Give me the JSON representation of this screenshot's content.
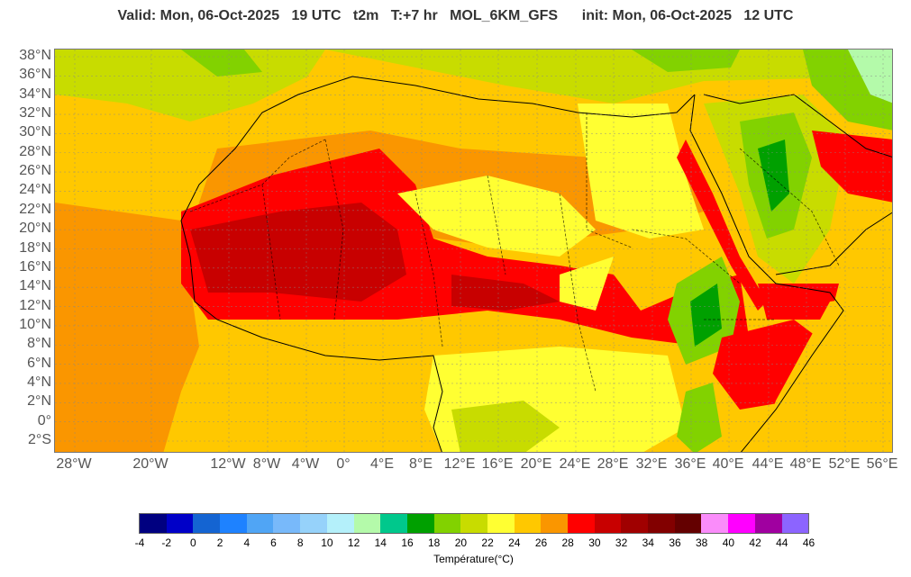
{
  "header": {
    "title": "Valid: Mon, 06-Oct-2025   19 UTC   t2m   T:+7 hr   MOL_6KM_GFS      init: Mon, 06-Oct-2025   12 UTC"
  },
  "map": {
    "lat_labels": [
      "38°N",
      "36°N",
      "34°N",
      "32°N",
      "30°N",
      "28°N",
      "26°N",
      "24°N",
      "22°N",
      "20°N",
      "18°N",
      "16°N",
      "14°N",
      "12°N",
      "10°N",
      "8°N",
      "6°N",
      "4°N",
      "2°N",
      "0°",
      "2°S"
    ],
    "lon_labels": [
      "28°W",
      "20°W",
      "12°W",
      "8°W",
      "4°W",
      "0°",
      "4°E",
      "8°E",
      "12°E",
      "16°E",
      "20°E",
      "24°E",
      "28°E",
      "32°E",
      "36°E",
      "40°E",
      "44°E",
      "48°E",
      "52°E",
      "56°E"
    ],
    "grid": true,
    "colors": {
      "ocean_west": "#fe9b00",
      "sahel_hot": "#e40000",
      "core_hot": "#b20000",
      "warm": "#ffc000",
      "mild": "#ffff33",
      "green": "#88cc00",
      "cool": "#22aa22"
    }
  },
  "colorbar": {
    "title": "Température(°C)",
    "ticks": [
      "-4",
      "-2",
      "0",
      "2",
      "4",
      "6",
      "8",
      "10",
      "12",
      "14",
      "16",
      "18",
      "20",
      "22",
      "24",
      "26",
      "28",
      "30",
      "32",
      "34",
      "36",
      "38",
      "40",
      "42",
      "44",
      "46"
    ],
    "colors": [
      "#000080",
      "#0000c8",
      "#1464d2",
      "#1e82ff",
      "#50a5f5",
      "#78b9fa",
      "#96d2fa",
      "#b4f0fa",
      "#b4faaa",
      "#00c88c",
      "#00a000",
      "#82d200",
      "#c8dc00",
      "#ffff32",
      "#ffc800",
      "#fa9600",
      "#ff0000",
      "#c80000",
      "#a00000",
      "#820000",
      "#640000",
      "#fa8cfa",
      "#ff00ff",
      "#a000a0",
      "#8c64ff"
    ]
  }
}
